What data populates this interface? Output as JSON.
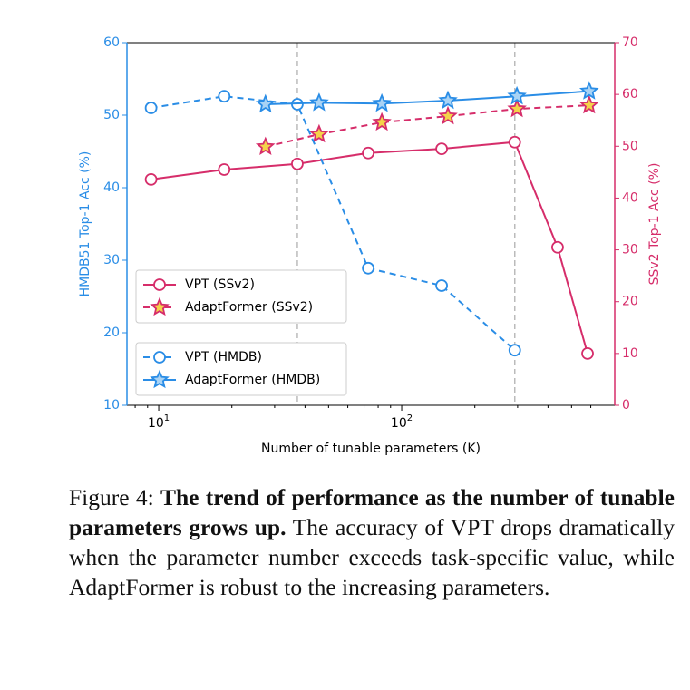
{
  "chart_data": {
    "type": "line",
    "xlabel": "Number of tunable parameters (K)",
    "ylabel": "HMDB51 Top-1 Acc (%)",
    "y2label": "SSv2 Top-1 Acc (%)",
    "xscale": "log",
    "xlim": [
      7.4,
      753
    ],
    "xticks": [
      {
        "value": 10,
        "label": "10^1"
      },
      {
        "value": 100,
        "label": "10^2"
      }
    ],
    "ylim": [
      10,
      60
    ],
    "yticks": [
      10,
      20,
      30,
      40,
      50,
      60
    ],
    "ycolor": "#2a8de6",
    "y2lim": [
      0,
      70
    ],
    "y2ticks": [
      0,
      10,
      20,
      30,
      40,
      50,
      60,
      70
    ],
    "y2color": "#d62d6a",
    "vlines": [
      37.2,
      292
    ],
    "legend": "lower left",
    "series": [
      {
        "name": "VPT (SSv2)",
        "color": "#d62d6a",
        "axis": "y2",
        "marker": "circle",
        "linestyle": "solid",
        "markerfill": "#ffffff",
        "x": [
          9.3,
          18.6,
          37.2,
          72.8,
          146,
          292,
          438,
          582
        ],
        "values": [
          43.6,
          45.5,
          46.6,
          48.7,
          49.5,
          50.8,
          30.5,
          10.0
        ]
      },
      {
        "name": "AdaptFormer (SSv2)",
        "color": "#d62d6a",
        "axis": "y2",
        "marker": "star",
        "linestyle": "dashed",
        "markerfill": "#f4d34a",
        "x": [
          27.5,
          45.7,
          82.8,
          155,
          298,
          591
        ],
        "values": [
          49.9,
          52.3,
          54.6,
          55.8,
          57.2,
          57.9
        ]
      },
      {
        "name": "VPT (HMDB)",
        "color": "#2a8de6",
        "axis": "y",
        "marker": "circle",
        "linestyle": "dashed",
        "markerfill": "#ffffff",
        "x": [
          9.3,
          18.6,
          37.2,
          72.8,
          146,
          292
        ],
        "values": [
          51.0,
          52.6,
          51.5,
          28.9,
          26.5,
          17.6
        ]
      },
      {
        "name": "AdaptFormer (HMDB)",
        "color": "#2a8de6",
        "axis": "y",
        "marker": "star",
        "linestyle": "solid",
        "markerfill": "#a9d3f5",
        "x": [
          27.5,
          45.7,
          82.8,
          155,
          298,
          591
        ],
        "values": [
          51.5,
          51.7,
          51.6,
          52.0,
          52.6,
          53.3
        ]
      }
    ]
  },
  "caption": {
    "label": "Figure 4:",
    "bold": "The trend of performance as the number of tunable parameters grows up.",
    "text": "The accuracy of VPT drops dramatically when the parameter number exceeds task-specific value, while AdaptFormer is robust to the increasing parameters."
  }
}
